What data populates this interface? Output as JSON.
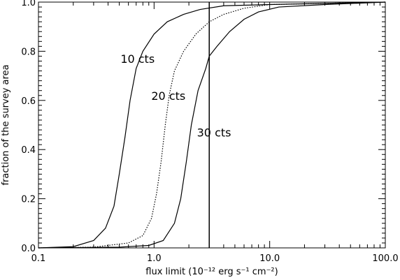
{
  "chart_data": {
    "type": "line",
    "title": "",
    "xlabel": "flux limit (10⁻¹² erg s⁻¹ cm⁻²)",
    "ylabel": "fraction of the survey area",
    "xscale": "log",
    "xlim": [
      0.1,
      100.0
    ],
    "ylim": [
      0.0,
      1.0
    ],
    "x_ticks": [
      0.1,
      1.0,
      10.0,
      100.0
    ],
    "x_tick_labels": [
      "0.1",
      "1.0",
      "10.0",
      "100.0"
    ],
    "y_ticks": [
      0.0,
      0.2,
      0.4,
      0.6,
      0.8,
      1.0
    ],
    "y_tick_labels": [
      "0.0",
      "0.2",
      "0.4",
      "0.6",
      "0.8",
      "1.0"
    ],
    "grid": false,
    "series": [
      {
        "name": "10 cts",
        "line_style": "solid",
        "label_pos": {
          "x": 0.72,
          "y": 0.77
        },
        "points": [
          [
            0.1,
            0.0
          ],
          [
            0.2,
            0.005
          ],
          [
            0.3,
            0.03
          ],
          [
            0.38,
            0.08
          ],
          [
            0.45,
            0.17
          ],
          [
            0.5,
            0.3
          ],
          [
            0.56,
            0.45
          ],
          [
            0.62,
            0.6
          ],
          [
            0.7,
            0.73
          ],
          [
            0.8,
            0.8
          ],
          [
            1.0,
            0.87
          ],
          [
            1.3,
            0.92
          ],
          [
            1.8,
            0.95
          ],
          [
            2.5,
            0.97
          ],
          [
            4.0,
            0.985
          ],
          [
            10.0,
            0.99
          ],
          [
            100.0,
            1.0
          ]
        ]
      },
      {
        "name": "20 cts",
        "line_style": "dotted",
        "label_pos": {
          "x": 1.33,
          "y": 0.62
        },
        "points": [
          [
            0.1,
            0.0
          ],
          [
            0.3,
            0.003
          ],
          [
            0.6,
            0.02
          ],
          [
            0.8,
            0.05
          ],
          [
            0.95,
            0.12
          ],
          [
            1.05,
            0.22
          ],
          [
            1.15,
            0.35
          ],
          [
            1.25,
            0.5
          ],
          [
            1.35,
            0.62
          ],
          [
            1.5,
            0.72
          ],
          [
            1.8,
            0.8
          ],
          [
            2.3,
            0.87
          ],
          [
            3.0,
            0.92
          ],
          [
            4.0,
            0.95
          ],
          [
            6.0,
            0.975
          ],
          [
            10.0,
            0.99
          ],
          [
            100.0,
            1.0
          ]
        ]
      },
      {
        "name": "30 cts",
        "line_style": "solid",
        "label_pos": {
          "x": 3.3,
          "y": 0.47
        },
        "points": [
          [
            0.1,
            0.0
          ],
          [
            0.5,
            0.003
          ],
          [
            0.9,
            0.01
          ],
          [
            1.2,
            0.03
          ],
          [
            1.5,
            0.1
          ],
          [
            1.7,
            0.2
          ],
          [
            1.9,
            0.35
          ],
          [
            2.1,
            0.5
          ],
          [
            2.4,
            0.64
          ],
          [
            2.8,
            0.73
          ],
          [
            3.0,
            0.78
          ],
          [
            3.5,
            0.82
          ],
          [
            4.5,
            0.88
          ],
          [
            6.0,
            0.93
          ],
          [
            8.0,
            0.96
          ],
          [
            12.0,
            0.98
          ],
          [
            30.0,
            0.99
          ],
          [
            100.0,
            1.0
          ]
        ]
      }
    ],
    "vertical_line": {
      "x": 3.0
    }
  }
}
